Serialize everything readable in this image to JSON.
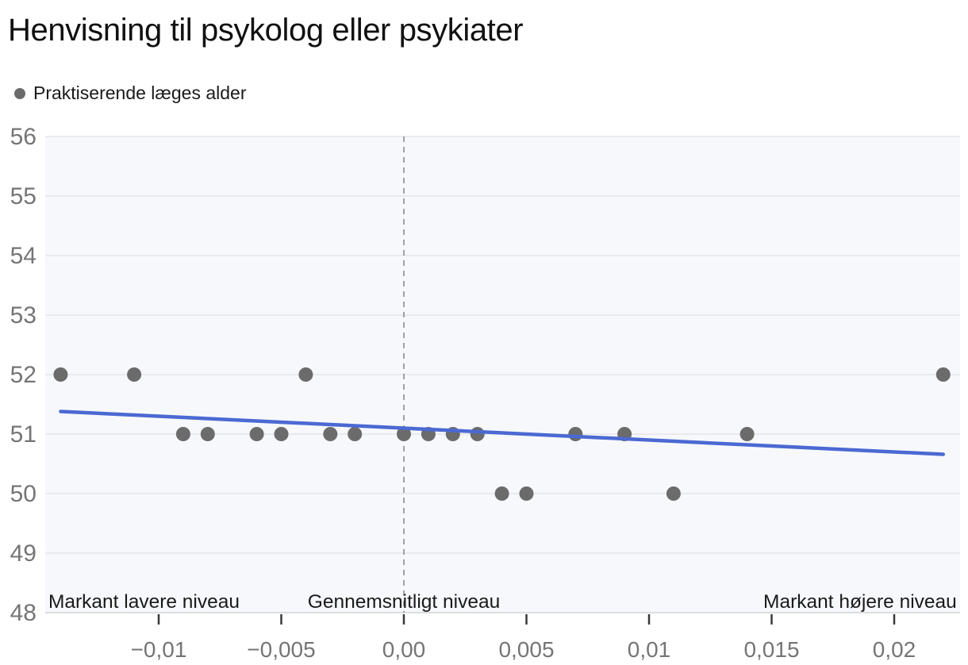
{
  "chart_data": {
    "type": "scatter",
    "title": "Henvisning til psykolog eller psykiater",
    "legend": [
      {
        "label": "Praktiserende læges alder",
        "color": "#6b6b6b"
      }
    ],
    "xlim": [
      -0.014628,
      0.022686
    ],
    "ylim": [
      48,
      56
    ],
    "grid": true,
    "legend_position": "top-left",
    "x_tick_values": [
      -0.01,
      -0.005,
      0,
      0.005,
      0.01,
      0.015,
      0.02
    ],
    "x_tick_labels": [
      "−0,01",
      "−0,005",
      "0,00",
      "0,005",
      "0,01",
      "0,015",
      "0,02"
    ],
    "y_tick_values": [
      48,
      49,
      50,
      51,
      52,
      53,
      54,
      55,
      56
    ],
    "y_tick_labels": [
      "48",
      "49",
      "50",
      "51",
      "52",
      "53",
      "54",
      "55",
      "56"
    ],
    "vline_x": 0,
    "annotations": [
      {
        "text": "Markant lavere niveau",
        "x": -0.0145,
        "align": "start"
      },
      {
        "text": "Gennemsnitligt niveau",
        "x": 0,
        "align": "middle"
      },
      {
        "text": "Markant højere niveau",
        "x": 0.02255,
        "align": "end"
      }
    ],
    "points": [
      {
        "x": -0.014,
        "y": 52
      },
      {
        "x": -0.011,
        "y": 52
      },
      {
        "x": -0.009,
        "y": 51
      },
      {
        "x": -0.008,
        "y": 51
      },
      {
        "x": -0.006,
        "y": 51
      },
      {
        "x": -0.005,
        "y": 51
      },
      {
        "x": -0.004,
        "y": 52
      },
      {
        "x": -0.003,
        "y": 51
      },
      {
        "x": -0.002,
        "y": 51
      },
      {
        "x": 0.0,
        "y": 51
      },
      {
        "x": 0.001,
        "y": 51
      },
      {
        "x": 0.002,
        "y": 51
      },
      {
        "x": 0.003,
        "y": 51
      },
      {
        "x": 0.004,
        "y": 50
      },
      {
        "x": 0.005,
        "y": 50
      },
      {
        "x": 0.007,
        "y": 51
      },
      {
        "x": 0.009,
        "y": 51
      },
      {
        "x": 0.011,
        "y": 50
      },
      {
        "x": 0.014,
        "y": 51
      },
      {
        "x": 0.022,
        "y": 52
      }
    ],
    "trend_line": {
      "x1": -0.014,
      "y1": 51.38,
      "x2": 0.022,
      "y2": 50.66
    }
  },
  "colors": {
    "point": "#6b6b6b",
    "trend": "#4b69d2",
    "grid": "#e5e6ea",
    "axis_line": "#dcdee2",
    "plot_bg": "#f7f8fb",
    "vline": "#8c8c8c",
    "tick_label": "#757575",
    "tick_mark": "#3a3a3a",
    "annotation_text": "#1a1a1a",
    "background": "#ffffff"
  }
}
